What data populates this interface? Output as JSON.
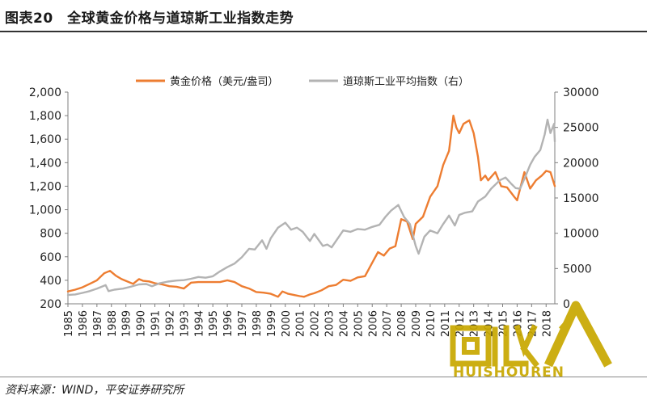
{
  "figure": {
    "title": "图表20　全球黄金价格与道琼斯工业指数走势",
    "source": "资料来源：WIND，平安证券研究所"
  },
  "watermark": {
    "logo_text": "回收",
    "brand_text": "HUISHOUREN",
    "accent_color": "#c8a800"
  },
  "chart_data": {
    "type": "line",
    "title": "",
    "x_ticks": [
      "1985",
      "1986",
      "1987",
      "1988",
      "1989",
      "1990",
      "1991",
      "1992",
      "1993",
      "1994",
      "1995",
      "1996",
      "1997",
      "1998",
      "1999",
      "2000",
      "2001",
      "2002",
      "2003",
      "2004",
      "2005",
      "2006",
      "2007",
      "2008",
      "2009",
      "2010",
      "2011",
      "2012",
      "2013",
      "2014",
      "2015",
      "2016",
      "2017",
      "2018"
    ],
    "xlim": [
      1985,
      2018.6
    ],
    "y_left": {
      "ticks": [
        "200",
        "400",
        "600",
        "800",
        "1,000",
        "1,200",
        "1,400",
        "1,600",
        "1,800",
        "2,000"
      ],
      "ylim": [
        200,
        2000
      ]
    },
    "y_right": {
      "ticks": [
        "0",
        "5000",
        "10000",
        "15000",
        "20000",
        "25000",
        "30000"
      ],
      "ylim": [
        0,
        30000
      ]
    },
    "legend_position": "top",
    "series": [
      {
        "name": "黄金价格（美元/盎司）",
        "axis": "left",
        "color": "#ed7d31",
        "points": [
          [
            1985.0,
            305
          ],
          [
            1985.5,
            320
          ],
          [
            1986.0,
            340
          ],
          [
            1986.5,
            370
          ],
          [
            1987.0,
            400
          ],
          [
            1987.5,
            460
          ],
          [
            1987.9,
            480
          ],
          [
            1988.3,
            440
          ],
          [
            1988.7,
            410
          ],
          [
            1989.0,
            395
          ],
          [
            1989.5,
            370
          ],
          [
            1989.9,
            410
          ],
          [
            1990.2,
            395
          ],
          [
            1990.6,
            390
          ],
          [
            1991.0,
            375
          ],
          [
            1991.5,
            365
          ],
          [
            1992.0,
            350
          ],
          [
            1992.5,
            345
          ],
          [
            1993.0,
            330
          ],
          [
            1993.5,
            380
          ],
          [
            1994.0,
            385
          ],
          [
            1994.5,
            385
          ],
          [
            1995.0,
            385
          ],
          [
            1995.5,
            385
          ],
          [
            1996.0,
            400
          ],
          [
            1996.5,
            385
          ],
          [
            1997.0,
            350
          ],
          [
            1997.5,
            330
          ],
          [
            1998.0,
            300
          ],
          [
            1998.5,
            295
          ],
          [
            1999.0,
            285
          ],
          [
            1999.5,
            260
          ],
          [
            1999.8,
            305
          ],
          [
            2000.2,
            285
          ],
          [
            2000.6,
            275
          ],
          [
            2001.0,
            265
          ],
          [
            2001.3,
            260
          ],
          [
            2001.7,
            280
          ],
          [
            2002.0,
            290
          ],
          [
            2002.5,
            315
          ],
          [
            2003.0,
            350
          ],
          [
            2003.5,
            360
          ],
          [
            2004.0,
            405
          ],
          [
            2004.5,
            395
          ],
          [
            2005.0,
            425
          ],
          [
            2005.5,
            435
          ],
          [
            2006.0,
            550
          ],
          [
            2006.4,
            640
          ],
          [
            2006.8,
            610
          ],
          [
            2007.2,
            670
          ],
          [
            2007.6,
            690
          ],
          [
            2008.0,
            920
          ],
          [
            2008.4,
            900
          ],
          [
            2008.8,
            750
          ],
          [
            2009.0,
            880
          ],
          [
            2009.5,
            940
          ],
          [
            2010.0,
            1110
          ],
          [
            2010.5,
            1200
          ],
          [
            2010.9,
            1380
          ],
          [
            2011.3,
            1500
          ],
          [
            2011.6,
            1800
          ],
          [
            2011.8,
            1700
          ],
          [
            2012.0,
            1650
          ],
          [
            2012.3,
            1730
          ],
          [
            2012.7,
            1760
          ],
          [
            2013.0,
            1650
          ],
          [
            2013.3,
            1450
          ],
          [
            2013.5,
            1250
          ],
          [
            2013.8,
            1290
          ],
          [
            2014.0,
            1250
          ],
          [
            2014.5,
            1320
          ],
          [
            2014.9,
            1200
          ],
          [
            2015.3,
            1190
          ],
          [
            2015.8,
            1110
          ],
          [
            2016.0,
            1080
          ],
          [
            2016.5,
            1320
          ],
          [
            2016.9,
            1180
          ],
          [
            2017.3,
            1250
          ],
          [
            2017.7,
            1290
          ],
          [
            2018.0,
            1330
          ],
          [
            2018.3,
            1320
          ],
          [
            2018.6,
            1200
          ]
        ]
      },
      {
        "name": "道琼斯工业平均指数（右）",
        "axis": "right",
        "color": "#b3b3b3",
        "points": [
          [
            1985.0,
            1250
          ],
          [
            1985.5,
            1330
          ],
          [
            1986.0,
            1550
          ],
          [
            1986.5,
            1800
          ],
          [
            1987.0,
            2150
          ],
          [
            1987.6,
            2650
          ],
          [
            1987.8,
            1800
          ],
          [
            1988.2,
            2000
          ],
          [
            1988.8,
            2150
          ],
          [
            1989.3,
            2400
          ],
          [
            1989.9,
            2750
          ],
          [
            1990.4,
            2800
          ],
          [
            1990.8,
            2500
          ],
          [
            1991.3,
            2900
          ],
          [
            1991.9,
            3150
          ],
          [
            1992.5,
            3300
          ],
          [
            1993.0,
            3350
          ],
          [
            1993.5,
            3550
          ],
          [
            1994.0,
            3800
          ],
          [
            1994.5,
            3700
          ],
          [
            1995.0,
            3900
          ],
          [
            1995.5,
            4600
          ],
          [
            1996.0,
            5200
          ],
          [
            1996.5,
            5700
          ],
          [
            1997.0,
            6600
          ],
          [
            1997.5,
            7800
          ],
          [
            1997.9,
            7700
          ],
          [
            1998.4,
            9000
          ],
          [
            1998.7,
            7800
          ],
          [
            1999.0,
            9300
          ],
          [
            1999.5,
            10800
          ],
          [
            2000.0,
            11500
          ],
          [
            2000.4,
            10500
          ],
          [
            2000.8,
            10800
          ],
          [
            2001.2,
            10200
          ],
          [
            2001.7,
            8900
          ],
          [
            2002.0,
            9900
          ],
          [
            2002.6,
            8200
          ],
          [
            2002.9,
            8400
          ],
          [
            2003.2,
            8000
          ],
          [
            2003.6,
            9200
          ],
          [
            2004.0,
            10400
          ],
          [
            2004.5,
            10200
          ],
          [
            2005.0,
            10600
          ],
          [
            2005.5,
            10500
          ],
          [
            2006.0,
            10900
          ],
          [
            2006.5,
            11200
          ],
          [
            2006.9,
            12300
          ],
          [
            2007.3,
            13200
          ],
          [
            2007.8,
            14000
          ],
          [
            2008.2,
            12300
          ],
          [
            2008.6,
            11300
          ],
          [
            2009.0,
            8200
          ],
          [
            2009.2,
            7100
          ],
          [
            2009.6,
            9500
          ],
          [
            2010.0,
            10400
          ],
          [
            2010.5,
            10000
          ],
          [
            2010.9,
            11300
          ],
          [
            2011.3,
            12500
          ],
          [
            2011.7,
            11100
          ],
          [
            2012.0,
            12600
          ],
          [
            2012.4,
            12900
          ],
          [
            2012.9,
            13100
          ],
          [
            2013.3,
            14500
          ],
          [
            2013.8,
            15200
          ],
          [
            2014.2,
            16300
          ],
          [
            2014.8,
            17500
          ],
          [
            2015.2,
            17900
          ],
          [
            2015.6,
            17000
          ],
          [
            2015.9,
            16400
          ],
          [
            2016.2,
            16300
          ],
          [
            2016.6,
            18200
          ],
          [
            2016.9,
            19700
          ],
          [
            2017.2,
            20800
          ],
          [
            2017.6,
            21800
          ],
          [
            2017.9,
            24000
          ],
          [
            2018.1,
            26100
          ],
          [
            2018.3,
            24200
          ],
          [
            2018.55,
            25500
          ],
          [
            2018.6,
            23000
          ]
        ]
      }
    ]
  }
}
